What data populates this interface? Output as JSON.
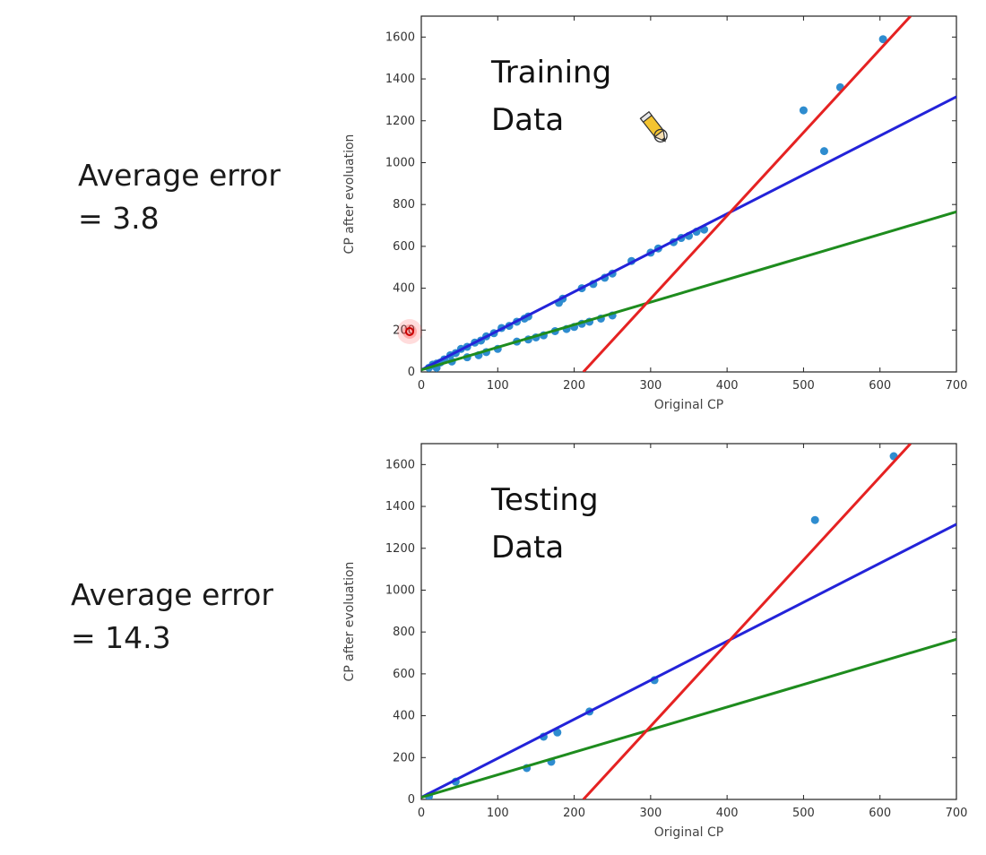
{
  "left_text": [
    {
      "line1": "Average error",
      "line2": "= 3.8"
    },
    {
      "line1": "Average error",
      "line2": "= 14.3"
    }
  ],
  "chart_data": [
    {
      "type": "scatter",
      "annotation": [
        "Training",
        "Data"
      ],
      "xlabel": "Original CP",
      "ylabel": "CP after evoluation",
      "xlim": [
        0,
        700
      ],
      "ylim": [
        0,
        1700
      ],
      "xticks": [
        0,
        100,
        200,
        300,
        400,
        500,
        600,
        700
      ],
      "yticks": [
        0,
        200,
        400,
        600,
        800,
        1000,
        1200,
        1400,
        1600
      ],
      "grid": false,
      "colors": {
        "points": "#2e8ccf",
        "fit_a": "#2323d9",
        "fit_b": "#1e8c1e",
        "fit_c": "#e52222"
      },
      "points": [
        [
          10,
          20
        ],
        [
          15,
          35
        ],
        [
          20,
          40
        ],
        [
          25,
          45
        ],
        [
          30,
          60
        ],
        [
          38,
          80
        ],
        [
          45,
          90
        ],
        [
          52,
          110
        ],
        [
          60,
          120
        ],
        [
          70,
          140
        ],
        [
          78,
          150
        ],
        [
          85,
          170
        ],
        [
          95,
          185
        ],
        [
          105,
          210
        ],
        [
          115,
          220
        ],
        [
          125,
          240
        ],
        [
          135,
          255
        ],
        [
          140,
          265
        ],
        [
          180,
          330
        ],
        [
          185,
          350
        ],
        [
          210,
          400
        ],
        [
          225,
          420
        ],
        [
          240,
          450
        ],
        [
          250,
          470
        ],
        [
          275,
          530
        ],
        [
          300,
          570
        ],
        [
          310,
          590
        ],
        [
          330,
          620
        ],
        [
          340,
          640
        ],
        [
          350,
          650
        ],
        [
          360,
          670
        ],
        [
          370,
          680
        ],
        [
          20,
          20
        ],
        [
          40,
          50
        ],
        [
          60,
          70
        ],
        [
          75,
          80
        ],
        [
          85,
          95
        ],
        [
          100,
          110
        ],
        [
          125,
          145
        ],
        [
          140,
          155
        ],
        [
          150,
          165
        ],
        [
          160,
          175
        ],
        [
          175,
          195
        ],
        [
          190,
          205
        ],
        [
          200,
          215
        ],
        [
          210,
          230
        ],
        [
          220,
          240
        ],
        [
          235,
          255
        ],
        [
          250,
          270
        ],
        [
          500,
          1250
        ],
        [
          527,
          1055
        ],
        [
          548,
          1360
        ],
        [
          604,
          1590
        ]
      ],
      "lines": [
        {
          "x": [
            0,
            700
          ],
          "y": [
            10,
            1315
          ]
        },
        {
          "x": [
            0,
            700
          ],
          "y": [
            10,
            765
          ]
        },
        {
          "x": [
            212,
            640
          ],
          "y": [
            0,
            1700
          ]
        }
      ]
    },
    {
      "type": "scatter",
      "annotation": [
        "Testing",
        "Data"
      ],
      "xlabel": "Original CP",
      "ylabel": "CP after evoluation",
      "xlim": [
        0,
        700
      ],
      "ylim": [
        0,
        1700
      ],
      "xticks": [
        0,
        100,
        200,
        300,
        400,
        500,
        600,
        700
      ],
      "yticks": [
        0,
        200,
        400,
        600,
        800,
        1000,
        1200,
        1400,
        1600
      ],
      "grid": false,
      "colors": {
        "points": "#2e8ccf",
        "fit_a": "#2323d9",
        "fit_b": "#1e8c1e",
        "fit_c": "#e52222"
      },
      "points": [
        [
          10,
          15
        ],
        [
          45,
          85
        ],
        [
          138,
          150
        ],
        [
          160,
          300
        ],
        [
          170,
          180
        ],
        [
          178,
          320
        ],
        [
          220,
          420
        ],
        [
          305,
          570
        ],
        [
          515,
          1335
        ],
        [
          618,
          1640
        ]
      ],
      "lines": [
        {
          "x": [
            0,
            700
          ],
          "y": [
            10,
            1315
          ]
        },
        {
          "x": [
            0,
            700
          ],
          "y": [
            10,
            765
          ]
        },
        {
          "x": [
            212,
            640
          ],
          "y": [
            0,
            1700
          ]
        }
      ]
    }
  ]
}
